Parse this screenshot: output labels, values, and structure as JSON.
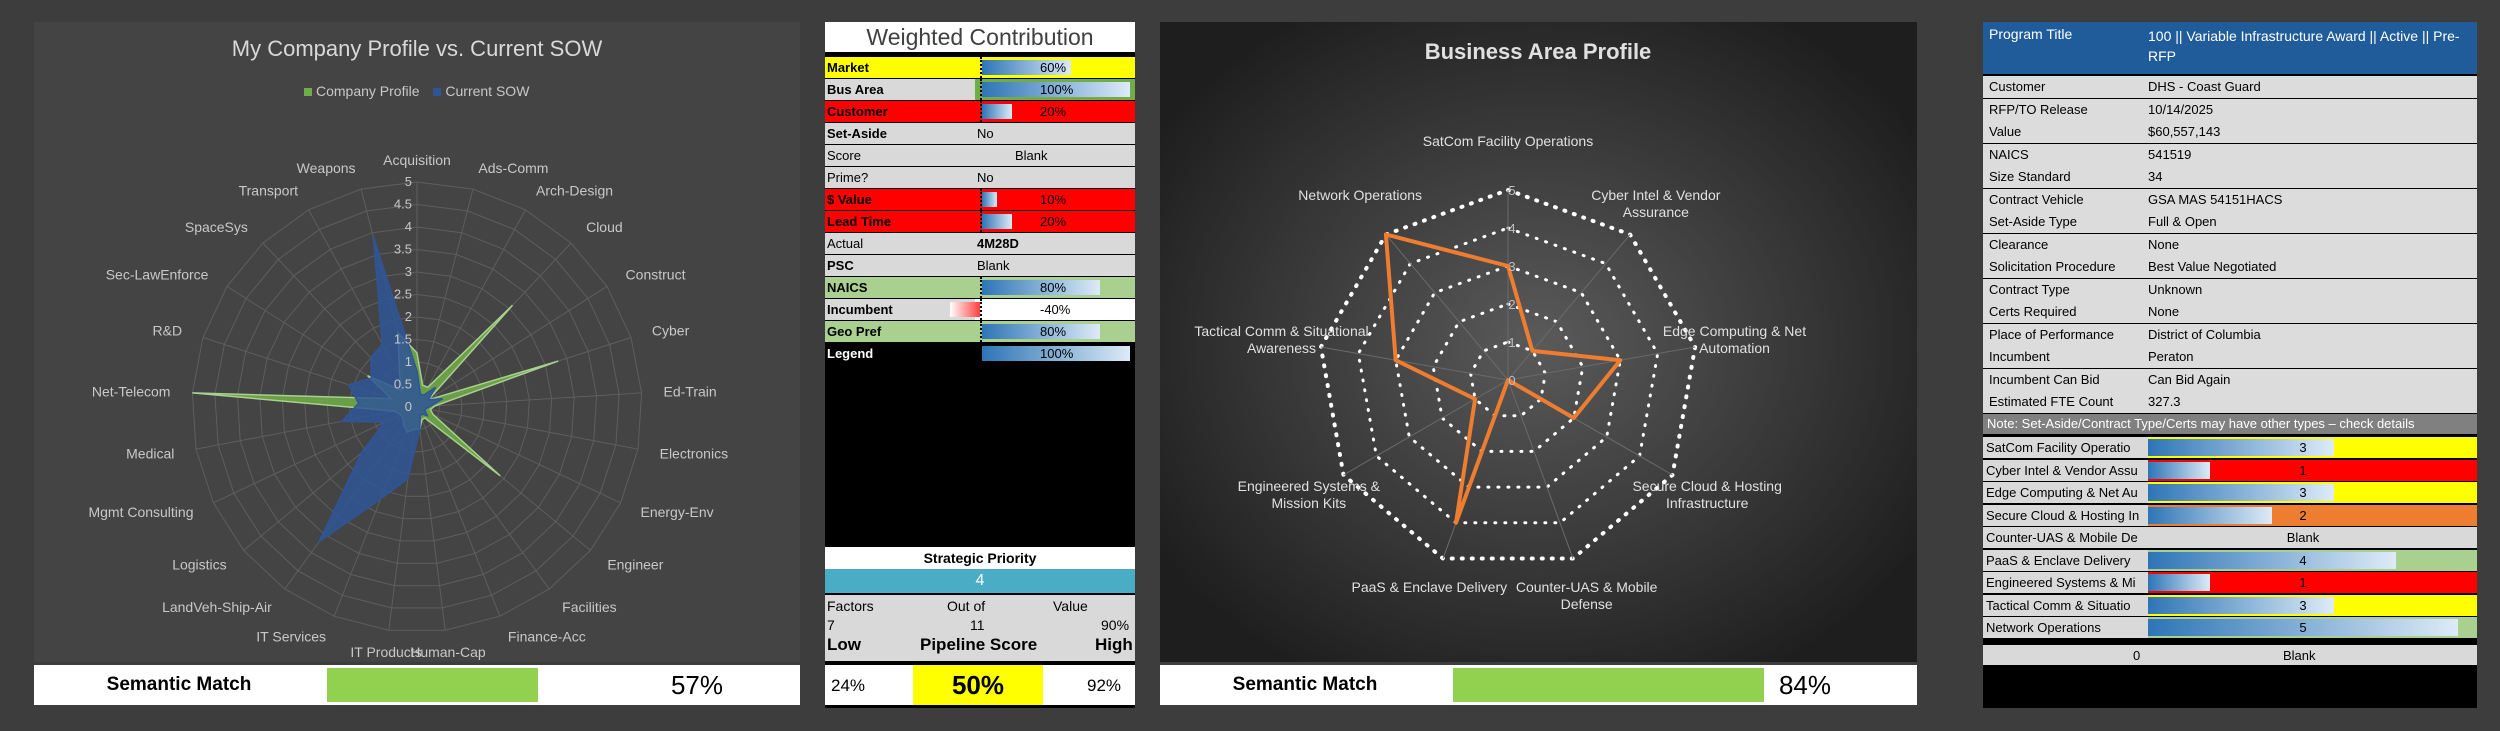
{
  "company_profile": {
    "title": "My Company Profile vs. Current SOW",
    "legend": [
      {
        "name": "Company Profile",
        "color": "#70ad47"
      },
      {
        "name": "Current SOW",
        "color": "#2f5597"
      }
    ],
    "scale_labels": [
      "0",
      "0.5",
      "1",
      "1.5",
      "2",
      "2.5",
      "3",
      "3.5",
      "4",
      "4.5",
      "5"
    ],
    "semantic_match": {
      "label": "Semantic Match",
      "value": "57%",
      "fill": 0.57
    }
  },
  "chart_data": [
    {
      "type": "radar",
      "title": "My Company Profile vs. Current SOW",
      "categories": [
        "Acquisition",
        "Ads-Comm",
        "Arch-Design",
        "Cloud",
        "Construct",
        "Cyber",
        "Ed-Train",
        "Electronics",
        "Energy-Env",
        "Engineer",
        "Facilities",
        "Finance-Acc",
        "Human-Cap",
        "IT Products",
        "IT Services",
        "LandVeh-Ship-Air",
        "Logistics",
        "Mgmt Consulting",
        "Medical",
        "Net-Telecom",
        "R&D",
        "Sec-LawEnforce",
        "SpaceSys",
        "Transport",
        "Weapons"
      ],
      "rlim": [
        0,
        5
      ],
      "series": [
        {
          "name": "Company Profile",
          "values": [
            1.2,
            0.5,
            0.5,
            3.1,
            0.3,
            3.3,
            0.4,
            0.3,
            0.4,
            2.4,
            0.3,
            0.3,
            0.5,
            0.5,
            0.6,
            0.5,
            0.4,
            0.4,
            0.5,
            5,
            0.6,
            1.3,
            0.5,
            0.8,
            1.7
          ]
        },
        {
          "name": "Current SOW",
          "values": [
            0.8,
            0.3,
            0.3,
            0.6,
            0.3,
            0.6,
            0.3,
            0.2,
            0.2,
            0.3,
            0.2,
            0.2,
            0.5,
            1.6,
            2.2,
            3.7,
            1.6,
            0.8,
            1.7,
            1.3,
            1.6,
            1.2,
            1.5,
            1.6,
            3.9
          ]
        }
      ],
      "legend_position": "top"
    },
    {
      "type": "radar",
      "title": "Business Area Profile",
      "categories": [
        "SatCom Facility Operations",
        "Cyber Intel & Vendor Assurance",
        "Edge Computing & Net Automation",
        "Secure Cloud & Hosting Infrastructure",
        "Counter-UAS & Mobile Defense",
        "PaaS & Enclave Delivery",
        "Engineered Systems & Mission Kits",
        "Tactical Comm & Situational Awareness",
        "Network Operations"
      ],
      "rlim": [
        0,
        5
      ],
      "series": [
        {
          "name": "",
          "values": [
            3,
            1,
            3,
            2,
            0,
            4,
            1,
            3,
            5
          ]
        }
      ]
    }
  ],
  "weighted": {
    "title": "Weighted Contribution",
    "rows": [
      {
        "label": "Market",
        "value": "60%",
        "label_bg": "#ffff00",
        "bar_bg": "#ffff00",
        "fill": 0.6
      },
      {
        "label": "Bus Area",
        "value": "100%",
        "label_bg": "#d9d9d9",
        "bar_bg": "#70ad47",
        "fill": 1.0
      },
      {
        "label": "Customer",
        "value": "20%",
        "label_bg": "#ff0000",
        "bar_bg": "#ff0000",
        "fill": 0.2
      },
      {
        "label": "Set-Aside",
        "value": "No",
        "label_bg": "#d9d9d9",
        "bar_bg": "#d9d9d9",
        "text_only": true
      },
      {
        "label": "Score",
        "value": "Blank",
        "label_bg": "#d9d9d9",
        "bar_bg": "#d9d9d9",
        "text_only": true,
        "right_label": true,
        "center": true
      },
      {
        "label": "Prime?",
        "value": "No",
        "label_bg": "#d9d9d9",
        "bar_bg": "#d9d9d9",
        "text_only": true,
        "right_label": true
      },
      {
        "label": "$ Value",
        "value": "10%",
        "label_bg": "#ff0000",
        "bar_bg": "#ff0000",
        "fill": 0.1
      },
      {
        "label": "Lead Time",
        "value": "20%",
        "label_bg": "#ff0000",
        "bar_bg": "#ff0000",
        "fill": 0.2
      },
      {
        "label": "Actual",
        "value": "4M28D",
        "label_bg": "#d9d9d9",
        "bar_bg": "#d9d9d9",
        "text_only": true,
        "right_label": true,
        "bold_value": true
      },
      {
        "label": "PSC",
        "value": "Blank",
        "label_bg": "#d9d9d9",
        "bar_bg": "#d9d9d9",
        "text_only": true
      },
      {
        "label": "NAICS",
        "value": "80%",
        "label_bg": "#a9d08e",
        "bar_bg": "#a9d08e",
        "fill": 0.8
      },
      {
        "label": "Incumbent",
        "value": "-40%",
        "label_bg": "#d9d9d9",
        "bar_bg": "#ffffff",
        "fill": -0.4
      },
      {
        "label": "Geo Pref",
        "value": "80%",
        "label_bg": "#a9d08e",
        "bar_bg": "#a9d08e",
        "fill": 0.8
      },
      {
        "label": "Legend",
        "value": "100%",
        "label_bg": "#000000",
        "bar_bg": "#000000",
        "fill": 1.0,
        "legend": true
      }
    ],
    "strategic_priority": {
      "label": "Strategic Priority",
      "value": "4"
    },
    "factors": {
      "label": "Factors",
      "value": "7"
    },
    "out_of": {
      "label": "Out of",
      "value": "11"
    },
    "value_col": {
      "label": "Value",
      "value": "90%"
    },
    "low": "Low",
    "pipeline": "Pipeline Score",
    "high": "High",
    "low_value": "24%",
    "score_value": "50%",
    "high_value": "92%"
  },
  "business_area": {
    "title": "Business Area Profile",
    "scale_labels": [
      "0",
      "1",
      "2",
      "3",
      "4",
      "5"
    ],
    "semantic_match": {
      "label": "Semantic Match",
      "value": "84%",
      "fill": 0.84
    }
  },
  "program": {
    "title_label": "Program Title",
    "title_value": "100 || Variable Infrastructure Award || Active || Pre-RFP",
    "rows": [
      {
        "k": "Customer",
        "v": "DHS - Coast Guard"
      },
      {
        "k": "RFP/TO Release",
        "v": "10/14/2025"
      },
      {
        "k": "Value",
        "v": "$60,557,143"
      },
      {
        "k": "NAICS",
        "v": "541519"
      },
      {
        "k": "Size Standard",
        "v": "34"
      },
      {
        "k": "Contract Vehicle",
        "v": "GSA MAS 54151HACS"
      },
      {
        "k": "Set-Aside Type",
        "v": "Full & Open"
      },
      {
        "k": "Clearance",
        "v": "None"
      },
      {
        "k": "Solicitation Procedure",
        "v": "Best Value Negotiated"
      },
      {
        "k": "Contract Type",
        "v": "Unknown"
      },
      {
        "k": "Certs Required",
        "v": "None"
      },
      {
        "k": "Place of Performance",
        "v": "District of Columbia"
      },
      {
        "k": "Incumbent",
        "v": "Peraton"
      },
      {
        "k": "Incumbent Can Bid",
        "v": "Can Bid Again"
      },
      {
        "k": "Estimated FTE Count",
        "v": "327.3"
      }
    ],
    "note": "Note: Set-Aside/Contract Type/Certs may have other types – check details",
    "scores": [
      {
        "k": "SatCom Facility Operatio",
        "v": "3",
        "fill": 0.6,
        "bg": "#ffff00"
      },
      {
        "k": "Cyber Intel & Vendor Assu",
        "v": "1",
        "fill": 0.2,
        "bg": "#ff0000"
      },
      {
        "k": "Edge Computing & Net Au",
        "v": "3",
        "fill": 0.6,
        "bg": "#ffff00"
      },
      {
        "k": "Secure Cloud & Hosting In",
        "v": "2",
        "fill": 0.4,
        "bg": "#ed7d31"
      },
      {
        "k": "Counter-UAS & Mobile De",
        "v": "Blank",
        "fill": 0,
        "bg": "#d9d9d9"
      },
      {
        "k": "PaaS & Enclave Delivery",
        "v": "4",
        "fill": 0.8,
        "bg": "#a9d08e"
      },
      {
        "k": "Engineered Systems & Mi",
        "v": "1",
        "fill": 0.2,
        "bg": "#ff0000"
      },
      {
        "k": "Tactical Comm & Situatio",
        "v": "3",
        "fill": 0.6,
        "bg": "#ffff00"
      },
      {
        "k": "Network Operations",
        "v": "5",
        "fill": 1.0,
        "bg": "#a9d08e"
      }
    ],
    "footer_left": "0",
    "footer_right": "Blank"
  }
}
